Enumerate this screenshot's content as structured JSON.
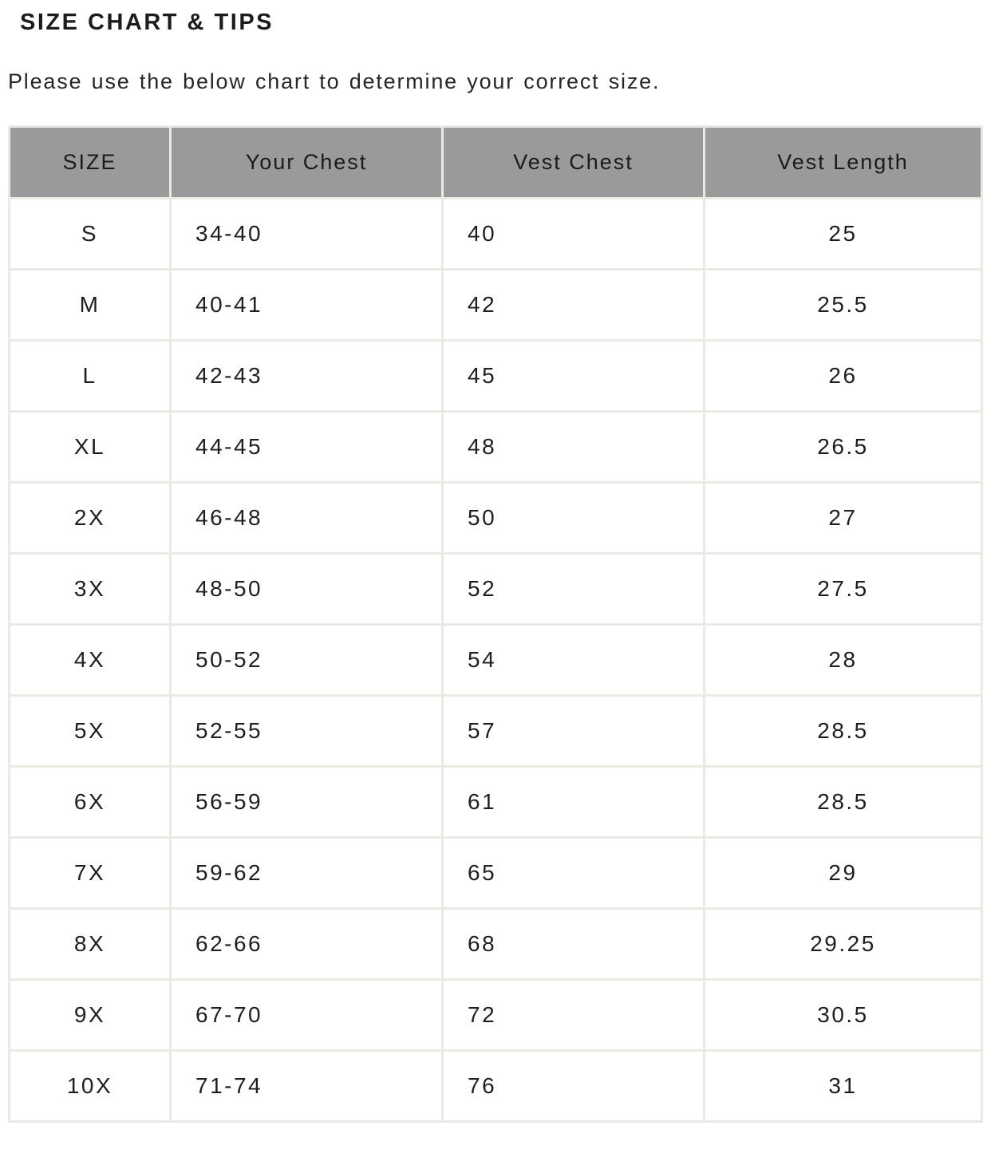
{
  "page": {
    "title": "SIZE CHART & TIPS",
    "subtitle": "Please use the below chart to determine your correct size."
  },
  "size_chart": {
    "columns": [
      "SIZE",
      "Your Chest",
      "Vest Chest",
      "Vest Length"
    ],
    "rows": [
      {
        "size": "S",
        "your_chest": "34-40",
        "vest_chest": "40",
        "vest_length": "25"
      },
      {
        "size": "M",
        "your_chest": "40-41",
        "vest_chest": "42",
        "vest_length": "25.5"
      },
      {
        "size": "L",
        "your_chest": "42-43",
        "vest_chest": "45",
        "vest_length": "26"
      },
      {
        "size": "XL",
        "your_chest": "44-45",
        "vest_chest": "48",
        "vest_length": "26.5"
      },
      {
        "size": "2X",
        "your_chest": "46-48",
        "vest_chest": "50",
        "vest_length": "27"
      },
      {
        "size": "3X",
        "your_chest": "48-50",
        "vest_chest": "52",
        "vest_length": "27.5"
      },
      {
        "size": "4X",
        "your_chest": "50-52",
        "vest_chest": "54",
        "vest_length": "28"
      },
      {
        "size": "5X",
        "your_chest": "52-55",
        "vest_chest": "57",
        "vest_length": "28.5"
      },
      {
        "size": "6X",
        "your_chest": "56-59",
        "vest_chest": "61",
        "vest_length": "28.5"
      },
      {
        "size": "7X",
        "your_chest": "59-62",
        "vest_chest": "65",
        "vest_length": "29"
      },
      {
        "size": "8X",
        "your_chest": "62-66",
        "vest_chest": "68",
        "vest_length": "29.25"
      },
      {
        "size": "9X",
        "your_chest": "67-70",
        "vest_chest": "72",
        "vest_length": "30.5"
      },
      {
        "size": "10X",
        "your_chest": "71-74",
        "vest_chest": "76",
        "vest_length": "31"
      }
    ],
    "colors": {
      "header_bg": "#9a9a9a",
      "header_text": "#1b1b1b",
      "border": "#ebe9e2",
      "cell_text": "#1e1e1e",
      "page_bg": "#ffffff"
    }
  }
}
